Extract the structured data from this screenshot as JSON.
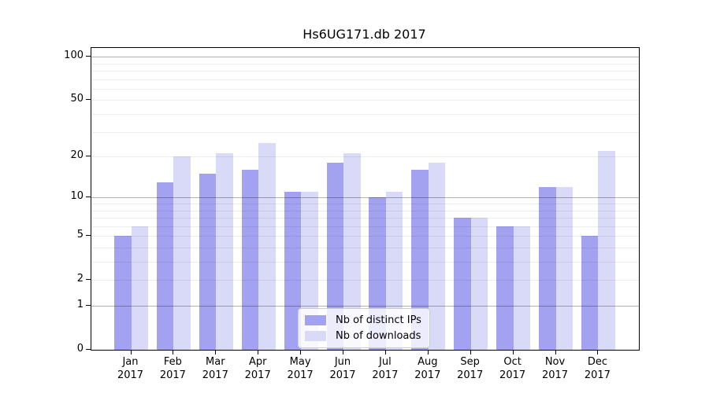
{
  "title": "Hs6UG171.db 2017",
  "chart_data": {
    "type": "bar",
    "title": "Hs6UG171.db 2017",
    "categories": [
      "Jan",
      "Feb",
      "Mar",
      "Apr",
      "May",
      "Jun",
      "Jul",
      "Aug",
      "Sep",
      "Oct",
      "Nov",
      "Dec"
    ],
    "x_year": "2017",
    "series": [
      {
        "name": "Nb of distinct IPs",
        "color": "#a2a2f0",
        "values": [
          5,
          13,
          15,
          16,
          11,
          18,
          10,
          16,
          7,
          6,
          12,
          5
        ]
      },
      {
        "name": "Nb of downloads",
        "color": "#d9d9f8",
        "values": [
          6,
          20,
          21,
          25,
          11,
          21,
          11,
          18,
          7,
          6,
          12,
          22
        ]
      }
    ],
    "yscale": "log1p",
    "ylim": [
      0,
      116
    ],
    "yticks": [
      0,
      1,
      2,
      5,
      10,
      20,
      50,
      100
    ],
    "major_gridlines": [
      1,
      10,
      100
    ],
    "minor_gridlines": [
      2,
      3,
      4,
      5,
      6,
      7,
      8,
      9,
      20,
      30,
      40,
      50,
      60,
      70,
      80,
      90
    ],
    "grid": true,
    "legend_position": "bottom-center"
  },
  "colors": {
    "bar_ips": "#a2a2f0",
    "bar_downloads": "#d9d9f8",
    "major_grid": "rgba(0,0,0,0.30)",
    "minor_grid": "rgba(0,0,0,0.07)",
    "axis": "#000000",
    "legend_border": "#cccccc",
    "legend_bg": "rgba(255,255,255,0.8)"
  }
}
